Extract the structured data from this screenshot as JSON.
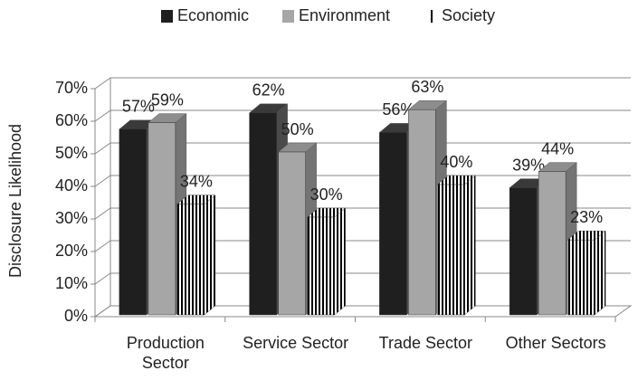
{
  "chart_data": {
    "type": "bar3d",
    "categories": [
      "Production Sector",
      "Service Sector",
      "Trade Sector",
      "Other Sectors"
    ],
    "series": [
      {
        "name": "Economic",
        "color": "#1f1f1f",
        "values": [
          57,
          62,
          56,
          39
        ],
        "value_labels": [
          "57%",
          "62%",
          "56%",
          "39%"
        ]
      },
      {
        "name": "Environment",
        "color": "#a6a6a6",
        "values": [
          59,
          50,
          63,
          44
        ],
        "value_labels": [
          "59%",
          "50%",
          "63%",
          "44%"
        ]
      },
      {
        "name": "Society",
        "color": "#000000",
        "pattern": "vertical-stripes",
        "values": [
          34,
          30,
          40,
          23
        ],
        "value_labels": [
          "34%",
          "30%",
          "40%",
          "23%"
        ]
      }
    ],
    "y_label": "Disclosure Likelihood",
    "ylim": [
      0,
      70
    ],
    "yticks": [
      {
        "value": 0,
        "label": "0%"
      },
      {
        "value": 10,
        "label": "10%"
      },
      {
        "value": 20,
        "label": "20%"
      },
      {
        "value": 30,
        "label": "30%"
      },
      {
        "value": 40,
        "label": "40%"
      },
      {
        "value": 50,
        "label": "50%"
      },
      {
        "value": 60,
        "label": "60%"
      },
      {
        "value": 70,
        "label": "70%"
      }
    ],
    "grid": true,
    "legend": "top"
  }
}
